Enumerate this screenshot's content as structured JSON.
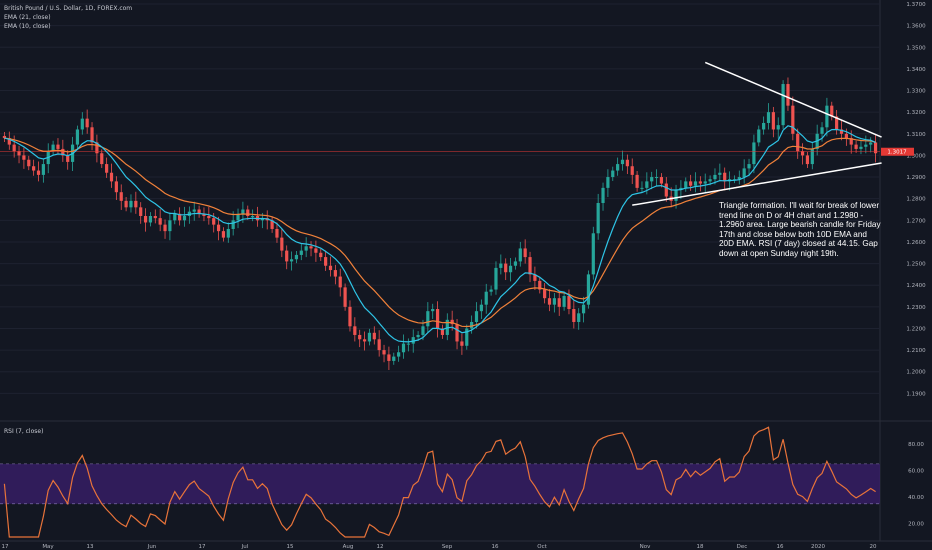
{
  "header": {
    "symbol_line": "British Pound / U.S. Dollar, 1D, FOREX.com",
    "ema21": "EMA (21, close)",
    "ema10": "EMA (10, close)"
  },
  "annotation": "Triangle formation.  I'll wait for break of lower trend line on D or 4H chart and 1.2980 - 1.2960 area. Large bearish candle for Friday 17th and close below both 10D EMA and 20D EMA.  RSI (7 day) closed at 44.15. Gap down at open Sunday night 19th.",
  "rsi_panel": {
    "label": "RSI (7, close)"
  },
  "colors": {
    "background": "#131722",
    "up": "#26a69a",
    "down": "#ef5350",
    "ema10": "#2ec4e6",
    "ema21": "#f0813a",
    "rsi_line": "#e8733a",
    "rsi_band": "#3b1f6e",
    "price_tag": "#e53935",
    "grid": "#1e2230"
  },
  "chart_data": [
    {
      "type": "candlestick",
      "y_ticks": [
        "1.3700",
        "1.3600",
        "1.3500",
        "1.3400",
        "1.3300",
        "1.3200",
        "1.3100",
        "1.3000",
        "1.2900",
        "1.2800",
        "1.2700",
        "1.2600",
        "1.2500",
        "1.2400",
        "1.2300",
        "1.2200",
        "1.2100",
        "1.2000",
        "1.1900"
      ],
      "ylim": [
        1.18,
        1.37
      ],
      "x_ticks": [
        "17",
        "May",
        "13",
        "Jun",
        "17",
        "Jul",
        "15",
        "Aug",
        "12",
        "Sep",
        "16",
        "Oct",
        "Nov",
        "18",
        "Dec",
        "16",
        "2020",
        "20"
      ],
      "last_price": "1.3017",
      "closes": [
        1.308,
        1.305,
        1.302,
        1.3,
        1.298,
        1.295,
        1.293,
        1.291,
        1.296,
        1.302,
        1.305,
        1.303,
        1.3,
        1.297,
        1.305,
        1.312,
        1.317,
        1.313,
        1.306,
        1.301,
        1.296,
        1.292,
        1.288,
        1.283,
        1.279,
        1.276,
        1.279,
        1.276,
        1.272,
        1.269,
        1.272,
        1.271,
        1.268,
        1.265,
        1.27,
        1.273,
        1.27,
        1.272,
        1.274,
        1.275,
        1.273,
        1.272,
        1.271,
        1.268,
        1.265,
        1.262,
        1.266,
        1.27,
        1.273,
        1.275,
        1.272,
        1.272,
        1.27,
        1.271,
        1.27,
        1.266,
        1.262,
        1.256,
        1.251,
        1.252,
        1.254,
        1.256,
        1.258,
        1.257,
        1.255,
        1.253,
        1.249,
        1.247,
        1.244,
        1.239,
        1.23,
        1.221,
        1.217,
        1.215,
        1.214,
        1.218,
        1.215,
        1.21,
        1.208,
        1.205,
        1.207,
        1.209,
        1.213,
        1.213,
        1.216,
        1.217,
        1.221,
        1.228,
        1.229,
        1.22,
        1.217,
        1.224,
        1.222,
        1.214,
        1.212,
        1.22,
        1.223,
        1.228,
        1.231,
        1.237,
        1.238,
        1.248,
        1.25,
        1.246,
        1.249,
        1.251,
        1.257,
        1.253,
        1.245,
        1.242,
        1.238,
        1.234,
        1.231,
        1.234,
        1.23,
        1.235,
        1.229,
        1.223,
        1.227,
        1.231,
        1.245,
        1.264,
        1.278,
        1.285,
        1.29,
        1.293,
        1.296,
        1.298,
        1.295,
        1.291,
        1.285,
        1.285,
        1.288,
        1.29,
        1.29,
        1.287,
        1.281,
        1.279,
        1.284,
        1.285,
        1.288,
        1.286,
        1.288,
        1.287,
        1.288,
        1.289,
        1.291,
        1.292,
        1.288,
        1.289,
        1.289,
        1.29,
        1.294,
        1.296,
        1.306,
        1.312,
        1.315,
        1.32,
        1.312,
        1.314,
        1.333,
        1.323,
        1.31,
        1.302,
        1.3,
        1.296,
        1.303,
        1.31,
        1.313,
        1.323,
        1.318,
        1.312,
        1.31,
        1.308,
        1.305,
        1.303,
        1.304,
        1.305,
        1.306,
        1.301
      ]
    },
    {
      "type": "line",
      "name": "RSI (7, close)",
      "y_ticks": [
        "80.00",
        "60.00",
        "40.00",
        "20.00"
      ],
      "ylim": [
        10,
        95
      ],
      "band": [
        35,
        65
      ],
      "closing_value": 44.15
    }
  ]
}
